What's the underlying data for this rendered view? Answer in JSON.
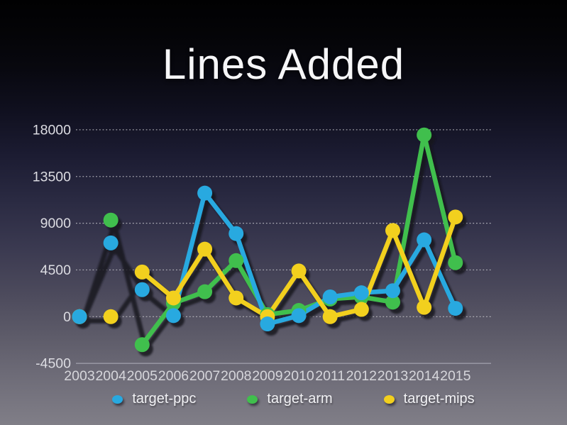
{
  "slide": {
    "title": "Lines Added"
  },
  "chart_data": {
    "type": "line",
    "title": "Lines Added",
    "x": [
      2003,
      2004,
      2005,
      2006,
      2007,
      2008,
      2009,
      2010,
      2011,
      2012,
      2013,
      2014,
      2015
    ],
    "y_ticks": [
      -4500,
      0,
      4500,
      9000,
      13500,
      18000
    ],
    "ylim": [
      -4500,
      18000
    ],
    "grid": "dotted-horizontal",
    "legend_position": "bottom",
    "series": [
      {
        "name": "target-ppc",
        "color": "#28a9e0",
        "values": [
          0,
          7100,
          2600,
          100,
          11900,
          8000,
          -700,
          100,
          1900,
          2300,
          2500,
          7400,
          800
        ],
        "colored_from_index": 3
      },
      {
        "name": "target-arm",
        "color": "#40bf4d",
        "values": [
          0,
          9300,
          -2700,
          1300,
          2400,
          5400,
          200,
          600,
          1700,
          1900,
          1400,
          17500,
          5200
        ],
        "colored_from_index": 2
      },
      {
        "name": "target-mips",
        "color": "#f2d01e",
        "values": [
          0,
          0,
          4300,
          1800,
          6500,
          1800,
          0,
          4400,
          0,
          700,
          8300,
          900,
          9600
        ],
        "colored_from_index": 2
      }
    ],
    "shadow_color": "#15151e",
    "gridline_color": "rgba(255,255,255,0.6)",
    "baseline_color": "rgba(195,195,205,0.5)"
  }
}
